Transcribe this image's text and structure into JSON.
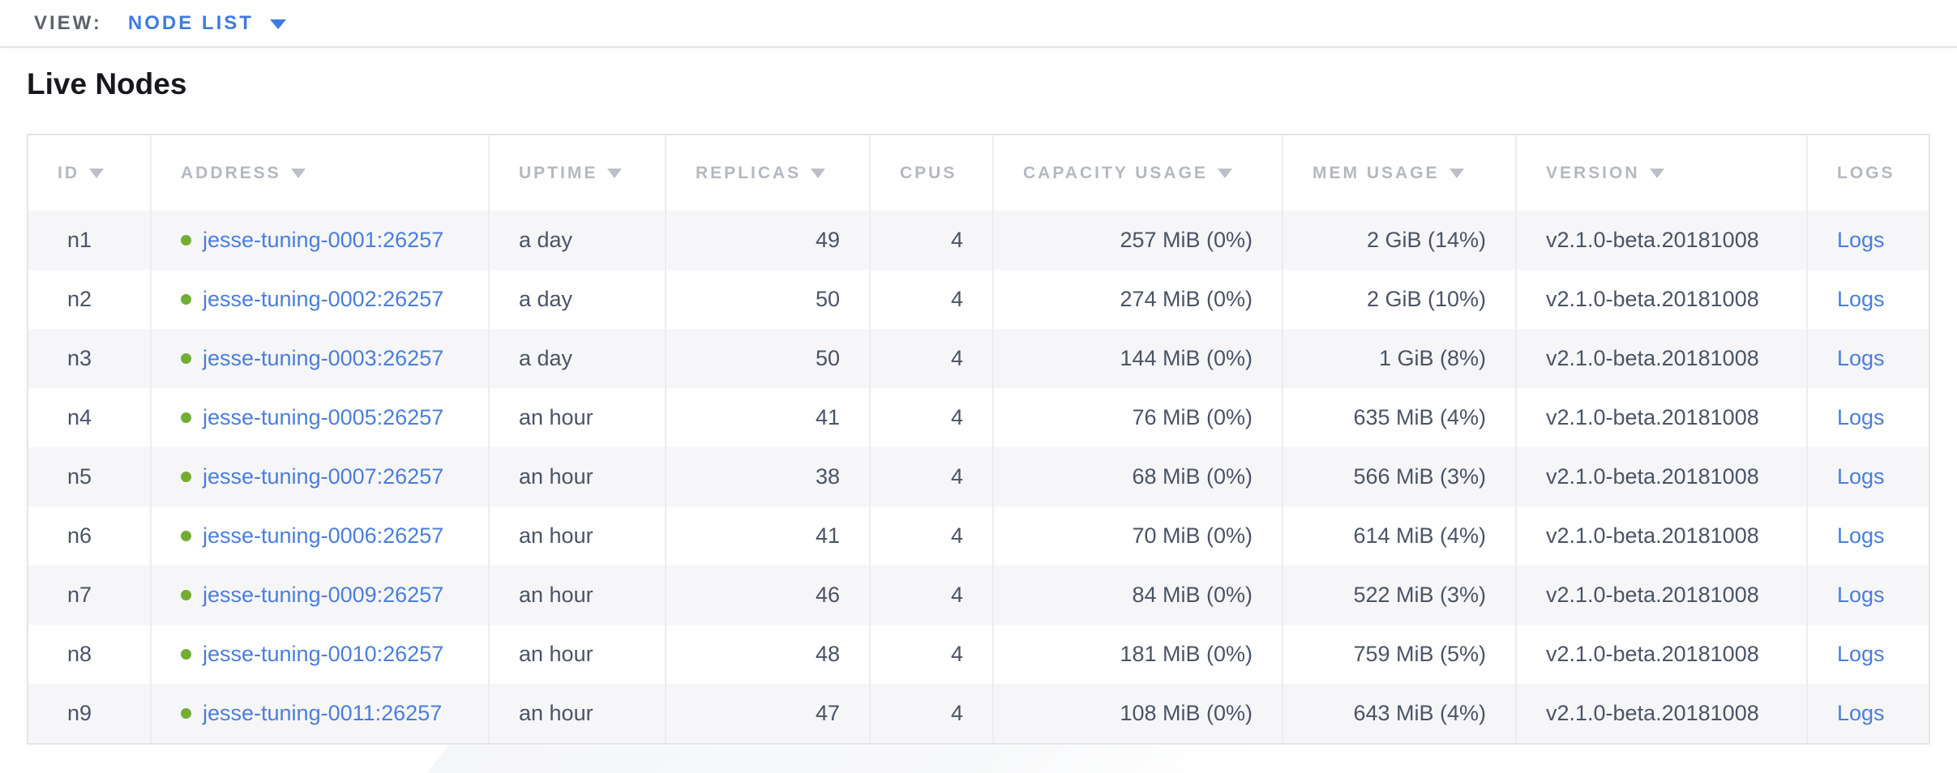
{
  "view_bar": {
    "label": "VIEW:",
    "selected": "NODE LIST"
  },
  "page": {
    "title": "Live Nodes"
  },
  "table": {
    "columns": [
      {
        "key": "id",
        "label": "ID",
        "sortable": true,
        "align": "left"
      },
      {
        "key": "address",
        "label": "ADDRESS",
        "sortable": true,
        "align": "left"
      },
      {
        "key": "uptime",
        "label": "UPTIME",
        "sortable": true,
        "align": "left"
      },
      {
        "key": "replicas",
        "label": "REPLICAS",
        "sortable": true,
        "align": "right"
      },
      {
        "key": "cpus",
        "label": "CPUS",
        "sortable": false,
        "align": "right"
      },
      {
        "key": "capacity_usage",
        "label": "CAPACITY USAGE",
        "sortable": true,
        "align": "right"
      },
      {
        "key": "mem_usage",
        "label": "MEM USAGE",
        "sortable": true,
        "align": "right"
      },
      {
        "key": "version",
        "label": "VERSION",
        "sortable": true,
        "align": "left"
      },
      {
        "key": "logs",
        "label": "LOGS",
        "sortable": false,
        "align": "left"
      }
    ],
    "rows": [
      {
        "id": "n1",
        "status": "healthy",
        "address": "jesse-tuning-0001:26257",
        "uptime": "a day",
        "replicas": "49",
        "cpus": "4",
        "capacity_usage": "257 MiB (0%)",
        "mem_usage": "2 GiB (14%)",
        "version": "v2.1.0-beta.20181008",
        "logs": "Logs"
      },
      {
        "id": "n2",
        "status": "healthy",
        "address": "jesse-tuning-0002:26257",
        "uptime": "a day",
        "replicas": "50",
        "cpus": "4",
        "capacity_usage": "274 MiB (0%)",
        "mem_usage": "2 GiB (10%)",
        "version": "v2.1.0-beta.20181008",
        "logs": "Logs"
      },
      {
        "id": "n3",
        "status": "healthy",
        "address": "jesse-tuning-0003:26257",
        "uptime": "a day",
        "replicas": "50",
        "cpus": "4",
        "capacity_usage": "144 MiB (0%)",
        "mem_usage": "1 GiB (8%)",
        "version": "v2.1.0-beta.20181008",
        "logs": "Logs"
      },
      {
        "id": "n4",
        "status": "healthy",
        "address": "jesse-tuning-0005:26257",
        "uptime": "an hour",
        "replicas": "41",
        "cpus": "4",
        "capacity_usage": "76 MiB (0%)",
        "mem_usage": "635 MiB (4%)",
        "version": "v2.1.0-beta.20181008",
        "logs": "Logs"
      },
      {
        "id": "n5",
        "status": "healthy",
        "address": "jesse-tuning-0007:26257",
        "uptime": "an hour",
        "replicas": "38",
        "cpus": "4",
        "capacity_usage": "68 MiB (0%)",
        "mem_usage": "566 MiB (3%)",
        "version": "v2.1.0-beta.20181008",
        "logs": "Logs"
      },
      {
        "id": "n6",
        "status": "healthy",
        "address": "jesse-tuning-0006:26257",
        "uptime": "an hour",
        "replicas": "41",
        "cpus": "4",
        "capacity_usage": "70 MiB (0%)",
        "mem_usage": "614 MiB (4%)",
        "version": "v2.1.0-beta.20181008",
        "logs": "Logs"
      },
      {
        "id": "n7",
        "status": "healthy",
        "address": "jesse-tuning-0009:26257",
        "uptime": "an hour",
        "replicas": "46",
        "cpus": "4",
        "capacity_usage": "84 MiB (0%)",
        "mem_usage": "522 MiB (3%)",
        "version": "v2.1.0-beta.20181008",
        "logs": "Logs"
      },
      {
        "id": "n8",
        "status": "healthy",
        "address": "jesse-tuning-0010:26257",
        "uptime": "an hour",
        "replicas": "48",
        "cpus": "4",
        "capacity_usage": "181 MiB (0%)",
        "mem_usage": "759 MiB (5%)",
        "version": "v2.1.0-beta.20181008",
        "logs": "Logs"
      },
      {
        "id": "n9",
        "status": "healthy",
        "address": "jesse-tuning-0011:26257",
        "uptime": "an hour",
        "replicas": "47",
        "cpus": "4",
        "capacity_usage": "108 MiB (0%)",
        "mem_usage": "643 MiB (4%)",
        "version": "v2.1.0-beta.20181008",
        "logs": "Logs"
      }
    ]
  },
  "colors": {
    "accent_blue": "#3d7be0",
    "link_blue": "#4a7edb",
    "status_green": "#72ae33",
    "header_gray": "#b4b8bf",
    "cell_text": "#4b5365",
    "row_stripe": "#f6f6f8",
    "border": "#e4e5e8"
  }
}
